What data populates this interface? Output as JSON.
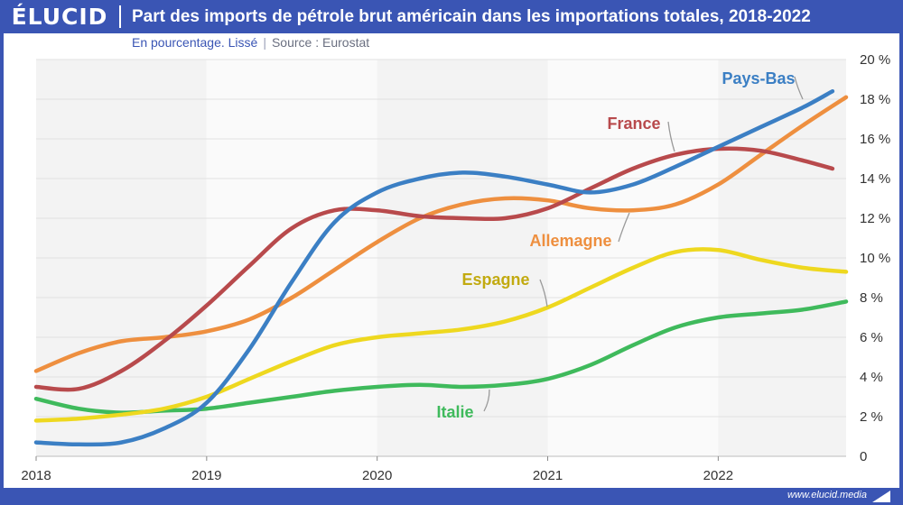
{
  "header": {
    "logo": "ÉLUCID",
    "title": "Part des imports de pétrole brut américain dans les importations totales, 2018-2022"
  },
  "subtitle": {
    "note": "En pourcentage. Lissé",
    "separator": "|",
    "source": "Source : Eurostat"
  },
  "footer": {
    "url": "www.elucid.media"
  },
  "colors": {
    "brand": "#3a55b4"
  },
  "chart_data": {
    "type": "line",
    "xlim": [
      2018,
      2022.75
    ],
    "ylim": [
      0,
      20
    ],
    "x_ticks": [
      "2018",
      "2019",
      "2020",
      "2021",
      "2022"
    ],
    "y_ticks": [
      "0",
      "2 %",
      "4 %",
      "6 %",
      "8 %",
      "10 %",
      "12 %",
      "14 %",
      "16 %",
      "18 %",
      "20 %"
    ],
    "grid": true,
    "legend": "inline labels",
    "series": [
      {
        "name": "Pays-Bas",
        "color": "#3b7fc4",
        "points": [
          [
            2018,
            0.7
          ],
          [
            2018.25,
            0.6
          ],
          [
            2018.5,
            0.7
          ],
          [
            2018.75,
            1.4
          ],
          [
            2019,
            2.7
          ],
          [
            2019.25,
            5.4
          ],
          [
            2019.5,
            8.8
          ],
          [
            2019.75,
            11.8
          ],
          [
            2020,
            13.3
          ],
          [
            2020.25,
            14.0
          ],
          [
            2020.5,
            14.3
          ],
          [
            2020.75,
            14.1
          ],
          [
            2021,
            13.7
          ],
          [
            2021.25,
            13.3
          ],
          [
            2021.5,
            13.7
          ],
          [
            2021.75,
            14.6
          ],
          [
            2022,
            15.6
          ],
          [
            2022.25,
            16.6
          ],
          [
            2022.5,
            17.6
          ],
          [
            2022.67,
            18.4
          ]
        ]
      },
      {
        "name": "France",
        "color": "#b84a4c",
        "points": [
          [
            2018,
            3.5
          ],
          [
            2018.25,
            3.4
          ],
          [
            2018.5,
            4.3
          ],
          [
            2018.75,
            5.8
          ],
          [
            2019,
            7.6
          ],
          [
            2019.25,
            9.6
          ],
          [
            2019.5,
            11.5
          ],
          [
            2019.75,
            12.4
          ],
          [
            2020,
            12.4
          ],
          [
            2020.25,
            12.1
          ],
          [
            2020.5,
            12.0
          ],
          [
            2020.75,
            12.0
          ],
          [
            2021,
            12.5
          ],
          [
            2021.25,
            13.5
          ],
          [
            2021.5,
            14.5
          ],
          [
            2021.75,
            15.2
          ],
          [
            2022,
            15.5
          ],
          [
            2022.25,
            15.4
          ],
          [
            2022.5,
            14.9
          ],
          [
            2022.67,
            14.5
          ]
        ]
      },
      {
        "name": "Allemagne",
        "color": "#ee8f3f",
        "points": [
          [
            2018,
            4.3
          ],
          [
            2018.25,
            5.2
          ],
          [
            2018.5,
            5.8
          ],
          [
            2018.75,
            6.0
          ],
          [
            2019,
            6.3
          ],
          [
            2019.25,
            6.9
          ],
          [
            2019.5,
            8.0
          ],
          [
            2019.75,
            9.4
          ],
          [
            2020,
            10.8
          ],
          [
            2020.25,
            12.0
          ],
          [
            2020.5,
            12.7
          ],
          [
            2020.75,
            13.0
          ],
          [
            2021,
            12.9
          ],
          [
            2021.25,
            12.5
          ],
          [
            2021.5,
            12.4
          ],
          [
            2021.75,
            12.7
          ],
          [
            2022,
            13.7
          ],
          [
            2022.25,
            15.2
          ],
          [
            2022.5,
            16.7
          ],
          [
            2022.75,
            18.1
          ]
        ]
      },
      {
        "name": "Espagne",
        "color": "#eed81f",
        "points": [
          [
            2018,
            1.8
          ],
          [
            2018.25,
            1.9
          ],
          [
            2018.5,
            2.1
          ],
          [
            2018.75,
            2.4
          ],
          [
            2019,
            3.0
          ],
          [
            2019.25,
            3.9
          ],
          [
            2019.5,
            4.8
          ],
          [
            2019.75,
            5.6
          ],
          [
            2020,
            6.0
          ],
          [
            2020.25,
            6.2
          ],
          [
            2020.5,
            6.4
          ],
          [
            2020.75,
            6.8
          ],
          [
            2021,
            7.5
          ],
          [
            2021.25,
            8.5
          ],
          [
            2021.5,
            9.5
          ],
          [
            2021.75,
            10.3
          ],
          [
            2022,
            10.4
          ],
          [
            2022.25,
            9.9
          ],
          [
            2022.5,
            9.5
          ],
          [
            2022.75,
            9.3
          ]
        ]
      },
      {
        "name": "Italie",
        "color": "#3fba5c",
        "points": [
          [
            2018,
            2.9
          ],
          [
            2018.25,
            2.4
          ],
          [
            2018.5,
            2.2
          ],
          [
            2018.75,
            2.3
          ],
          [
            2019,
            2.4
          ],
          [
            2019.25,
            2.7
          ],
          [
            2019.5,
            3.0
          ],
          [
            2019.75,
            3.3
          ],
          [
            2020,
            3.5
          ],
          [
            2020.25,
            3.6
          ],
          [
            2020.5,
            3.5
          ],
          [
            2020.75,
            3.6
          ],
          [
            2021,
            3.9
          ],
          [
            2021.25,
            4.6
          ],
          [
            2021.5,
            5.6
          ],
          [
            2021.75,
            6.5
          ],
          [
            2022,
            7.0
          ],
          [
            2022.25,
            7.2
          ],
          [
            2022.5,
            7.4
          ],
          [
            2022.75,
            7.8
          ]
        ]
      }
    ]
  }
}
